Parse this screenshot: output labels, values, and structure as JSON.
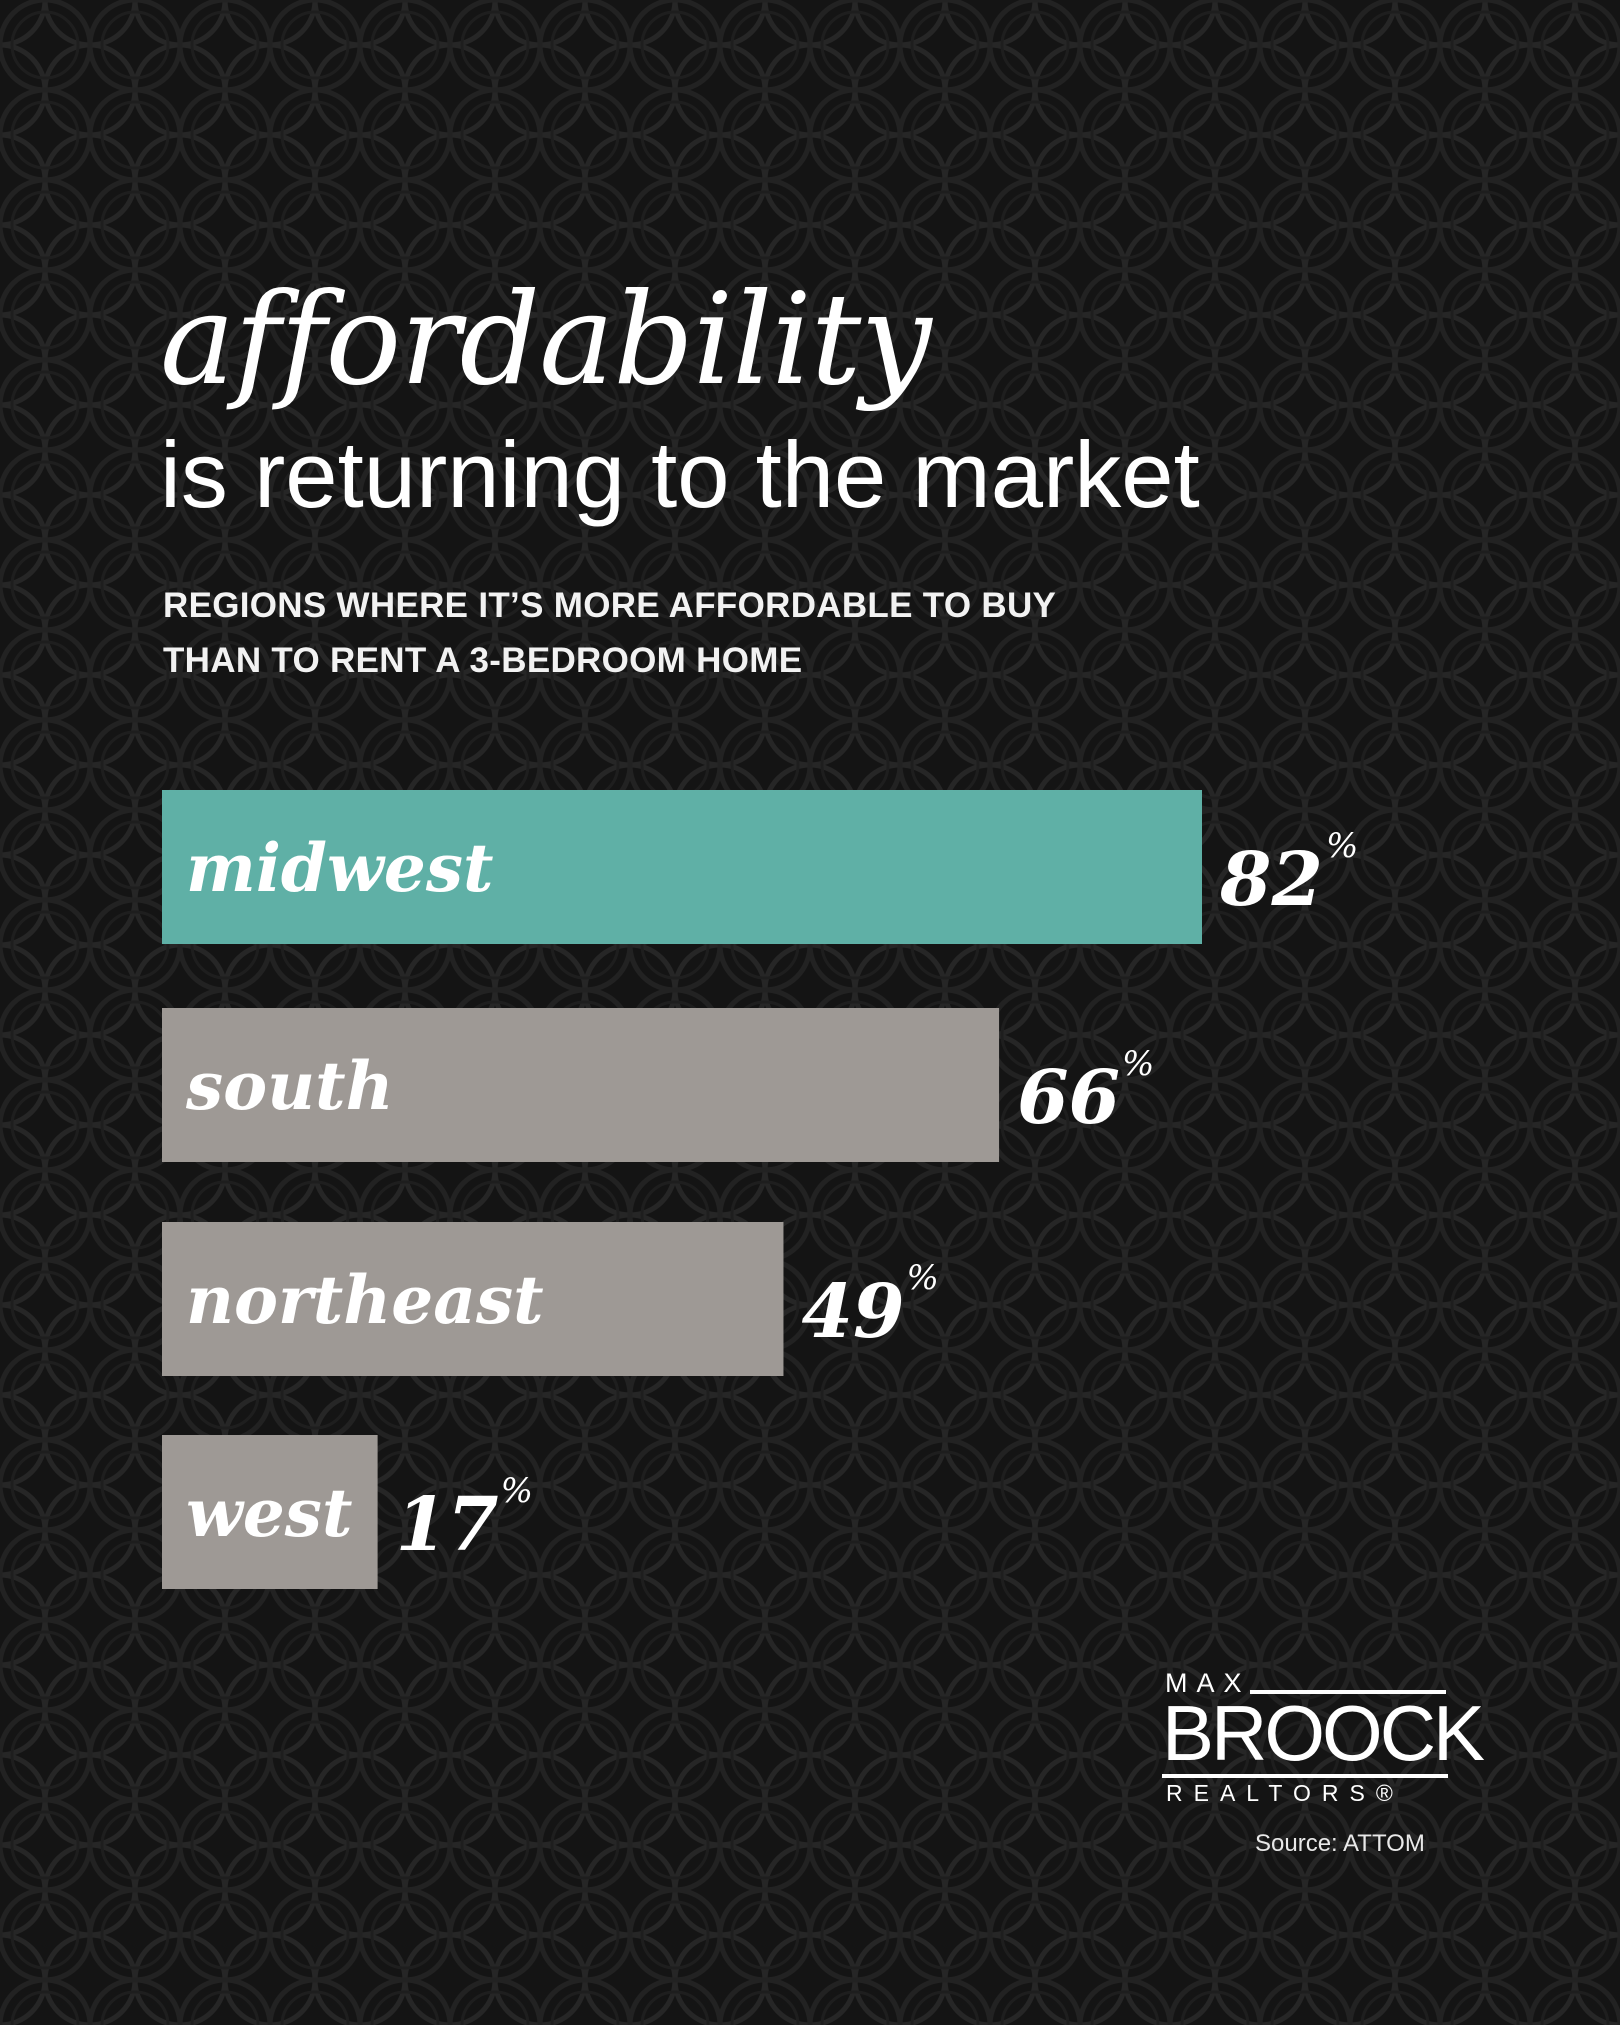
{
  "title": {
    "main": "affordability",
    "line2": "is returning to the market"
  },
  "subtitle": {
    "line1": "REGIONS WHERE IT’S MORE AFFORDABLE TO BUY",
    "line2": "THAN TO RENT A 3-BEDROOM HOME"
  },
  "chart_data": {
    "type": "bar",
    "orientation": "horizontal",
    "categories": [
      "midwest",
      "south",
      "northeast",
      "west"
    ],
    "values": [
      82,
      66,
      49,
      17
    ],
    "value_suffix": "%",
    "title": "affordability is returning to the market",
    "subtitle": "REGIONS WHERE IT’S MORE AFFORDABLE TO BUY THAN TO RENT A 3-BEDROOM HOME",
    "xlabel": "",
    "ylabel": "",
    "xlim": [
      0,
      100
    ],
    "grid": false,
    "legend": "none",
    "colors": [
      "#5fb0a6",
      "#9e9995",
      "#9e9995",
      "#9e9995"
    ]
  },
  "logo": {
    "max": "MAX",
    "brand": "BROOCK",
    "realtors": "REALTORS®"
  },
  "source": "Source: ATTOM",
  "colors": {
    "background": "#141414",
    "accent": "#5fb0a6",
    "bar": "#9e9995",
    "text": "#ffffff"
  }
}
